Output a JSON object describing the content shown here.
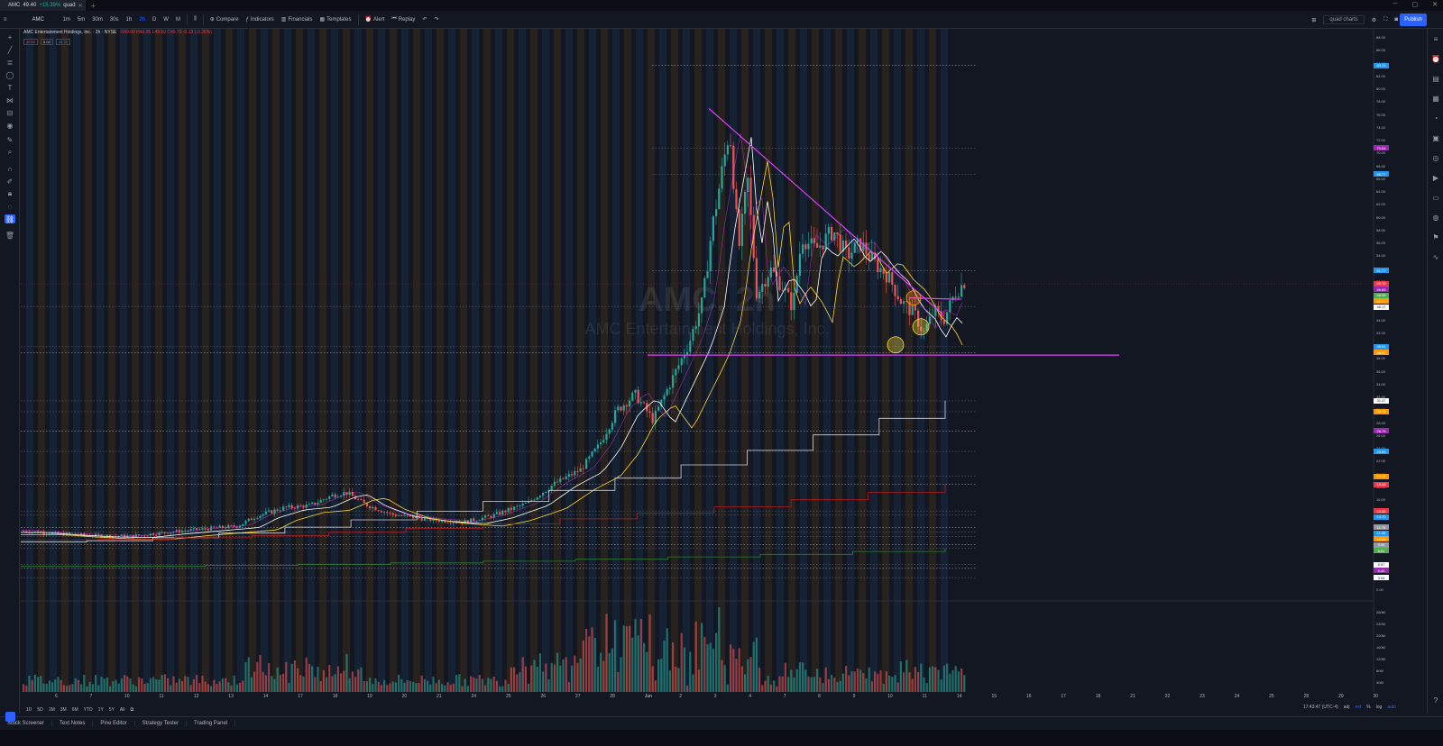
{
  "browser_tab": {
    "symbol": "AMC",
    "price": "49.40",
    "change": "+15.39%",
    "layout": "quad"
  },
  "toolbar": {
    "symbol": "AMC",
    "intervals": [
      "1m",
      "5m",
      "30m",
      "30s",
      "1h",
      "2h",
      "D",
      "W",
      "M"
    ],
    "active_interval": "2h",
    "compare": "Compare",
    "indicators": "Indicators",
    "financials": "Financials",
    "templates": "Templates",
    "alert": "Alert",
    "replay": "Replay",
    "layout_name": "quad charts",
    "publish": "Publish"
  },
  "legend": {
    "title": "AMC Entertainment Holdings, Inc. · 2h · NYSE",
    "ohlc": "O49.89 H49.95 L49.50 C49.70 -0.13 (-0.26%)",
    "sub": [
      "49.69",
      "0.02",
      "49.72"
    ]
  },
  "watermark": {
    "symbol": "AMC, 2h",
    "name": "AMC Entertainment Holdings, Inc."
  },
  "y_axis": {
    "ticks": [
      "88.00",
      "86.00",
      "84.00",
      "82.00",
      "80.00",
      "78.00",
      "76.00",
      "74.00",
      "72.00",
      "70.00",
      "68.00",
      "66.00",
      "64.00",
      "62.00",
      "60.00",
      "58.00",
      "56.00",
      "54.00",
      "52.00",
      "50.00",
      "48.00",
      "46.00",
      "44.00",
      "42.00",
      "40.00",
      "38.00",
      "36.00",
      "34.00",
      "32.00",
      "30.00",
      "28.00",
      "26.00",
      "24.00",
      "22.00",
      "20.00",
      "18.00",
      "16.00",
      "14.00",
      "12.00",
      "10.00",
      "8.00",
      "6.00",
      "4.00",
      "2.00"
    ],
    "volume_ticks": [
      "280M",
      "240M",
      "200M",
      "160M",
      "120M",
      "80M",
      "40M"
    ]
  },
  "price_labels": [
    {
      "v": "83.70",
      "c": "#2196f3"
    },
    {
      "v": "70.84",
      "c": "#9c27b0"
    },
    {
      "v": "66.77",
      "c": "#2196f3"
    },
    {
      "v": "51.77",
      "c": "#2196f3"
    },
    {
      "v": "49.70",
      "c": "#f23645"
    },
    {
      "v": "49.69",
      "c": "#9c27b0"
    },
    {
      "v": "48.55",
      "c": "#4caf50"
    },
    {
      "v": "47.17",
      "c": "#ff9800"
    },
    {
      "v": "46.17",
      "c": "#ffffff"
    },
    {
      "v": "39.91",
      "c": "#2196f3"
    },
    {
      "v": "38.99",
      "c": "#ff9800"
    },
    {
      "v": "31.47",
      "c": "#ffffff"
    },
    {
      "v": "29.78",
      "c": "#ff9800"
    },
    {
      "v": "26.79",
      "c": "#9c27b0"
    },
    {
      "v": "23.59",
      "c": "#2196f3"
    },
    {
      "v": "19.74",
      "c": "#ff9800"
    },
    {
      "v": "18.48",
      "c": "#f23645"
    },
    {
      "v": "14.32",
      "c": "#f23645"
    },
    {
      "v": "13.70",
      "c": "#2196f3"
    },
    {
      "v": "11.76",
      "c": "#9598a1"
    },
    {
      "v": "11.06",
      "c": "#2196f3"
    },
    {
      "v": "10.35",
      "c": "#ff9800"
    },
    {
      "v": "9.06",
      "c": "#9598a1"
    },
    {
      "v": "8.51",
      "c": "#4caf50"
    },
    {
      "v": "5.97",
      "c": "#ffffff"
    },
    {
      "v": "5.40",
      "c": "#9c27b0"
    },
    {
      "v": "3.94",
      "c": "#ffffff"
    }
  ],
  "x_axis": {
    "ticks": [
      "6",
      "7",
      "10",
      "11",
      "12",
      "13",
      "14",
      "17",
      "18",
      "19",
      "20",
      "21",
      "24",
      "25",
      "26",
      "27",
      "28",
      "Jun",
      "2",
      "3",
      "4",
      "7",
      "8",
      "9",
      "10",
      "11",
      "14",
      "15",
      "16",
      "17",
      "18",
      "21",
      "22",
      "23",
      "24",
      "25",
      "28",
      "29",
      "30"
    ]
  },
  "date_range": [
    "1D",
    "5D",
    "1M",
    "3M",
    "6M",
    "YTD",
    "1Y",
    "5Y",
    "All"
  ],
  "status": {
    "time": "17:43:47 (UTC-4)",
    "adj": "adj",
    "ext": "ext",
    "pct": "%",
    "log": "log",
    "auto": "auto"
  },
  "bottom_tabs": [
    "Stock Screener",
    "Text Notes",
    "Pine Editor",
    "Strategy Tester",
    "Trading Panel"
  ],
  "colors": {
    "up": "#26a69a",
    "down": "#ef5350",
    "trend": "#e040fb",
    "bg": "#131722"
  }
}
